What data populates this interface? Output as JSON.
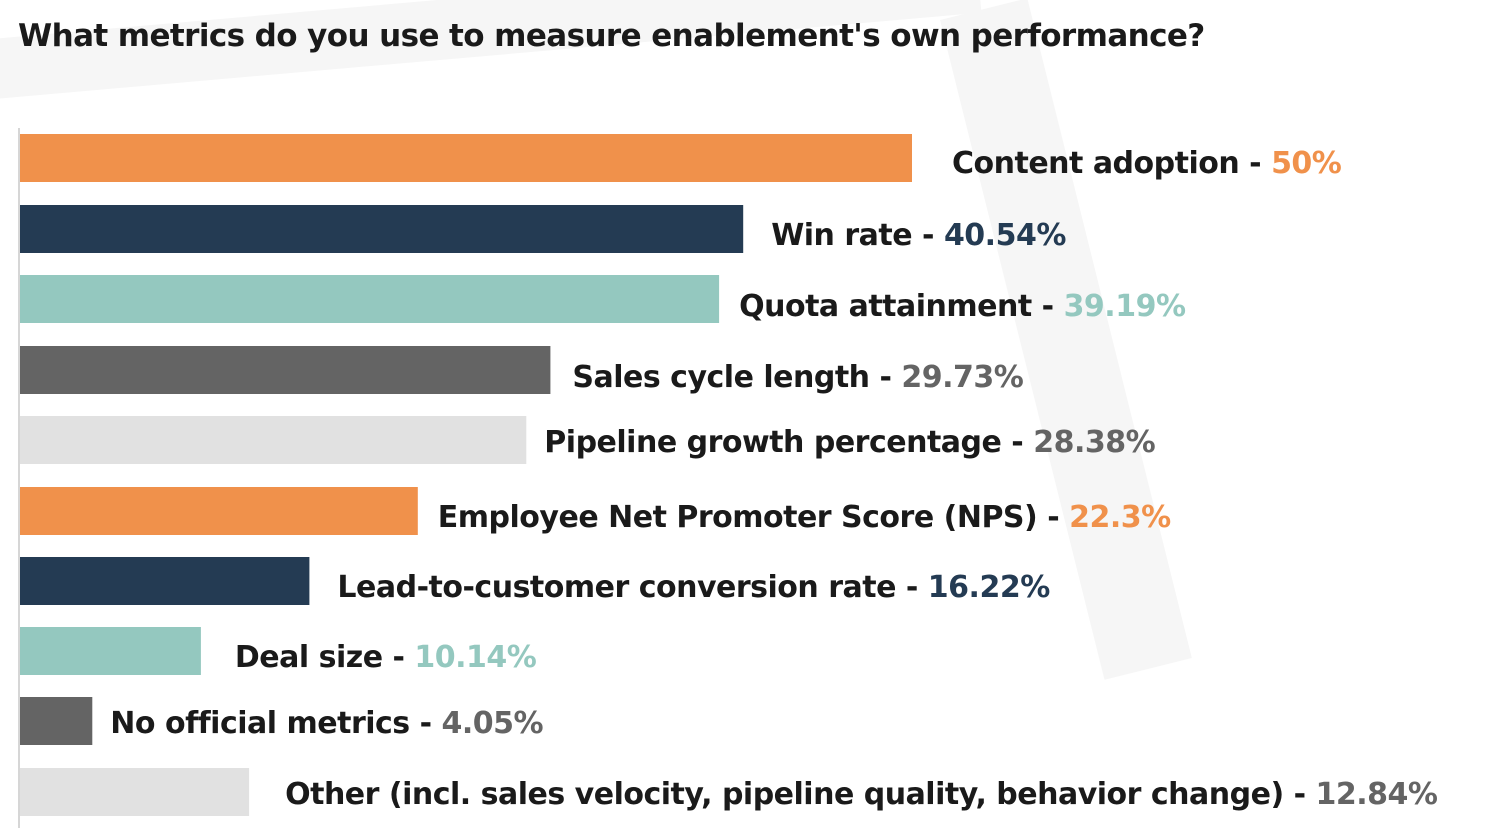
{
  "title": "What metrics do you use to measure enablement's own performance?",
  "colors": {
    "orange": "#f0914b",
    "navy": "#243b53",
    "teal": "#94c8bf",
    "gray": "#646464",
    "lightgray": "#e1e1e1",
    "label_text": "#1a1a1a",
    "axis": "#d6d6d6"
  },
  "chart_data": {
    "type": "bar",
    "orientation": "horizontal",
    "title": "What metrics do you use to measure enablement's own performance?",
    "xlabel": "",
    "ylabel": "",
    "xlim": [
      0,
      50
    ],
    "grid": false,
    "legend": "none",
    "unit": "%",
    "categories": [
      "Content adoption",
      "Win rate",
      "Quota attainment",
      "Sales cycle length",
      "Pipeline growth percentage",
      "Employee Net Promoter Score (NPS)",
      "Lead-to-customer conversion rate",
      "Deal size",
      "No official metrics",
      "Other (incl. sales velocity, pipeline quality, behavior change)"
    ],
    "values": [
      50,
      40.54,
      39.19,
      29.73,
      28.38,
      22.3,
      16.22,
      10.14,
      4.05,
      12.84
    ],
    "value_labels": [
      "50%",
      "40.54%",
      "39.19%",
      "29.73%",
      "28.38%",
      "22.3%",
      "16.22%",
      "10.14%",
      "4.05%",
      "12.84%"
    ],
    "bar_colors": [
      "#f0914b",
      "#243b53",
      "#94c8bf",
      "#646464",
      "#e1e1e1",
      "#f0914b",
      "#243b53",
      "#94c8bf",
      "#646464",
      "#e1e1e1"
    ],
    "value_colors": [
      "#f0914b",
      "#243b53",
      "#94c8bf",
      "#646464",
      "#646464",
      "#f0914b",
      "#243b53",
      "#94c8bf",
      "#646464",
      "#646464"
    ]
  }
}
